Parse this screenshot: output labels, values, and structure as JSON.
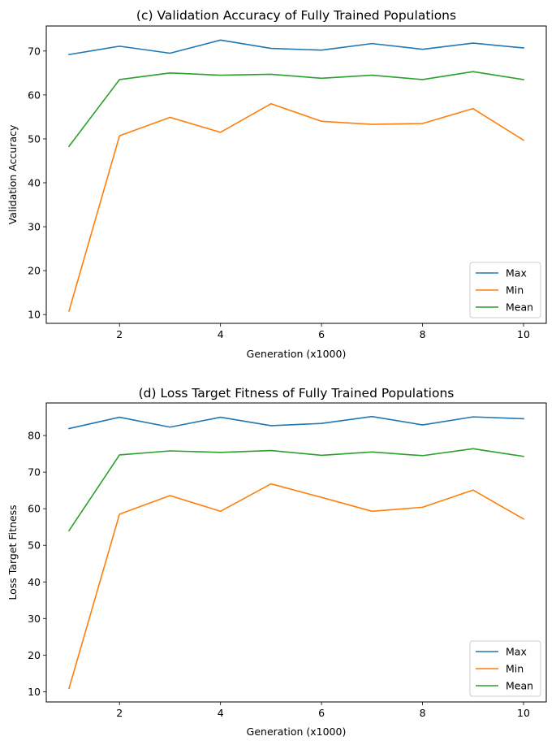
{
  "chart_data": [
    {
      "type": "line",
      "title": "(c) Validation Accuracy of Fully Trained Populations",
      "xlabel": "Generation (x1000)",
      "ylabel": "Validation Accuracy",
      "x": [
        1,
        2,
        3,
        4,
        5,
        6,
        7,
        8,
        9,
        10
      ],
      "xticks": [
        2,
        4,
        6,
        8,
        10
      ],
      "yticks": [
        10,
        20,
        30,
        40,
        50,
        60,
        70
      ],
      "xlim": [
        0.55,
        10.45
      ],
      "ylim": [
        8,
        75.7
      ],
      "legend_position": "lower-right",
      "grid": false,
      "series": [
        {
          "name": "Max",
          "color": "#1f77b4",
          "values": [
            69.2,
            71.1,
            69.5,
            72.5,
            70.6,
            70.2,
            71.7,
            70.4,
            71.8,
            70.7
          ]
        },
        {
          "name": "Min",
          "color": "#ff7f0e",
          "values": [
            10.8,
            50.7,
            54.9,
            51.5,
            58.0,
            54.0,
            53.3,
            53.5,
            56.9,
            49.7
          ]
        },
        {
          "name": "Mean",
          "color": "#2ca02c",
          "values": [
            48.3,
            63.5,
            65.0,
            64.5,
            64.7,
            63.8,
            64.5,
            63.5,
            65.3,
            63.5
          ]
        }
      ]
    },
    {
      "type": "line",
      "title": "(d) Loss Target Fitness of Fully Trained Populations",
      "xlabel": "Generation (x1000)",
      "ylabel": "Loss Target Fitness",
      "x": [
        1,
        2,
        3,
        4,
        5,
        6,
        7,
        8,
        9,
        10
      ],
      "xticks": [
        2,
        4,
        6,
        8,
        10
      ],
      "yticks": [
        10,
        20,
        30,
        40,
        50,
        60,
        70,
        80
      ],
      "xlim": [
        0.55,
        10.45
      ],
      "ylim": [
        7.2,
        88.9
      ],
      "legend_position": "lower-right",
      "grid": false,
      "series": [
        {
          "name": "Max",
          "color": "#1f77b4",
          "values": [
            81.9,
            85.0,
            82.3,
            85.0,
            82.7,
            83.3,
            85.2,
            82.9,
            85.1,
            84.6
          ]
        },
        {
          "name": "Min",
          "color": "#ff7f0e",
          "values": [
            10.9,
            58.5,
            63.6,
            59.3,
            66.8,
            63.1,
            59.3,
            60.4,
            65.1,
            57.2
          ]
        },
        {
          "name": "Mean",
          "color": "#2ca02c",
          "values": [
            54.0,
            74.7,
            75.8,
            75.4,
            75.9,
            74.6,
            75.5,
            74.5,
            76.4,
            74.3
          ]
        }
      ]
    }
  ]
}
